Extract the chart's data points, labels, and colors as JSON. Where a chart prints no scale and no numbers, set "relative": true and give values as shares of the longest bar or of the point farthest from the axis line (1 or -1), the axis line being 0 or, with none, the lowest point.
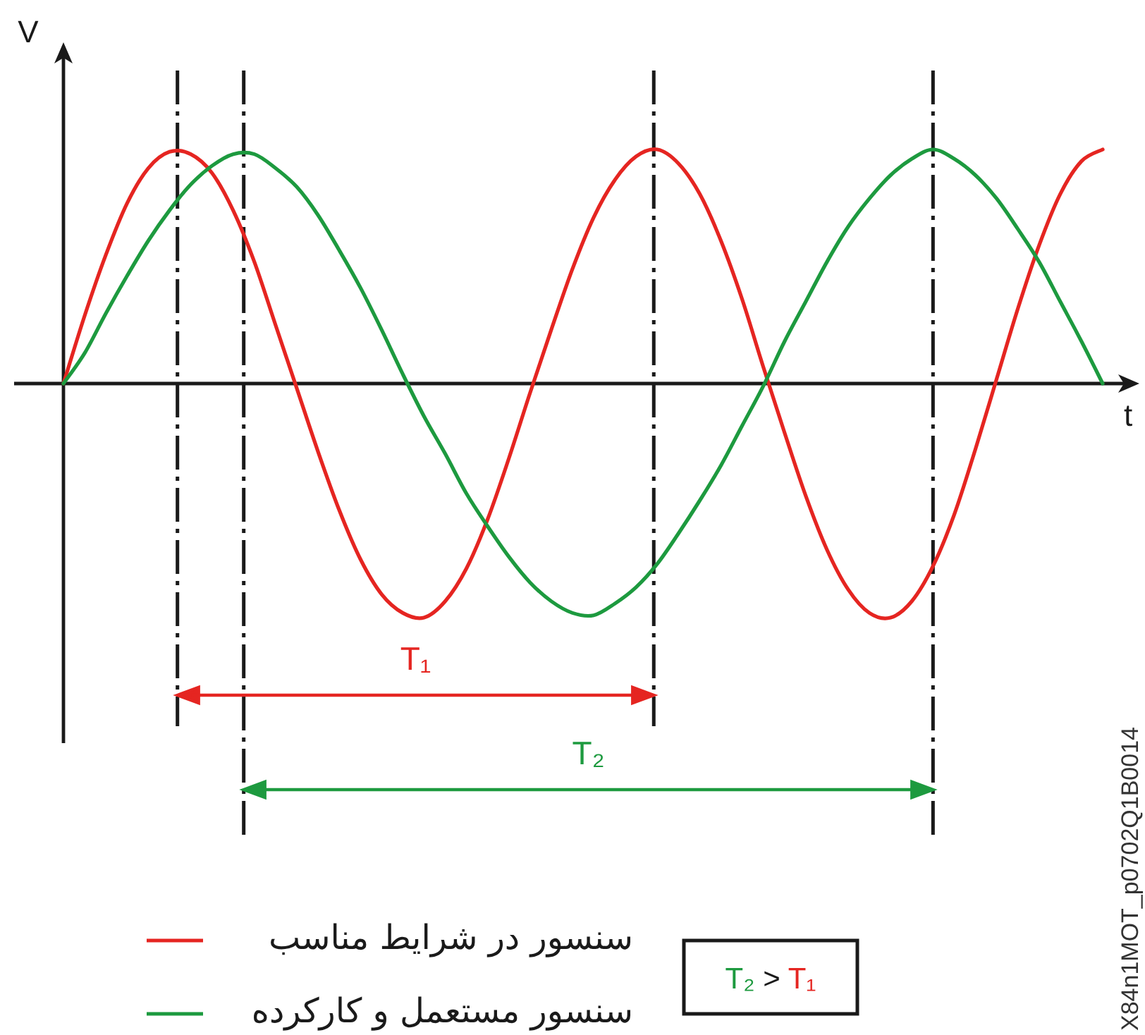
{
  "chart_data": {
    "type": "line",
    "relative": true,
    "xlabel": "t",
    "ylabel": "V",
    "categories": [
      null,
      null,
      null,
      null,
      null,
      null,
      null,
      null,
      null,
      null,
      null,
      null,
      null,
      null,
      null,
      null,
      null,
      null,
      null,
      null,
      null,
      null,
      null,
      null,
      null,
      null,
      null,
      null,
      null,
      null,
      null,
      null,
      null,
      null,
      null,
      null,
      null,
      null,
      null,
      null,
      null,
      null,
      null,
      null,
      null,
      null,
      null,
      null,
      null,
      null
    ],
    "series": [
      {
        "name": "سنسور در شرایط مناسب",
        "color": "#e52521",
        "values": [
          0,
          0.29,
          0.55,
          0.77,
          0.92,
          0.99,
          0.98,
          0.9,
          0.74,
          0.52,
          0.25,
          -0.02,
          -0.29,
          -0.54,
          -0.75,
          -0.9,
          -0.98,
          -1.0,
          -0.93,
          -0.79,
          -0.58,
          -0.32,
          -0.04,
          0.23,
          0.49,
          0.71,
          0.87,
          0.97,
          1.0,
          0.94,
          0.81,
          0.61,
          0.36,
          0.07,
          -0.21,
          -0.48,
          -0.71,
          -0.88,
          -0.98,
          -1.0,
          -0.93,
          -0.78,
          -0.56,
          -0.28,
          0.02,
          0.32,
          0.59,
          0.81,
          0.95,
          1.0
        ]
      },
      {
        "name": "سنسور مستعمل و کارکرده",
        "color": "#1d9a3f",
        "values": [
          0,
          0.13,
          0.3,
          0.46,
          0.61,
          0.74,
          0.85,
          0.93,
          0.98,
          0.98,
          0.92,
          0.84,
          0.72,
          0.57,
          0.41,
          0.23,
          0.04,
          -0.14,
          -0.3,
          -0.47,
          -0.61,
          -0.74,
          -0.85,
          -0.93,
          -0.98,
          -0.99,
          -0.94,
          -0.87,
          -0.77,
          -0.64,
          -0.5,
          -0.35,
          -0.18,
          -0.01,
          0.18,
          0.35,
          0.52,
          0.67,
          0.79,
          0.89,
          0.96,
          1.0,
          0.96,
          0.89,
          0.79,
          0.66,
          0.52,
          0.35,
          0.18,
          0
        ]
      }
    ],
    "legend": "bottom",
    "annotations": [
      "T₁",
      "T₂",
      "T₂ > T₁",
      "X84n1MOT_p0702Q1B0014"
    ]
  }
}
